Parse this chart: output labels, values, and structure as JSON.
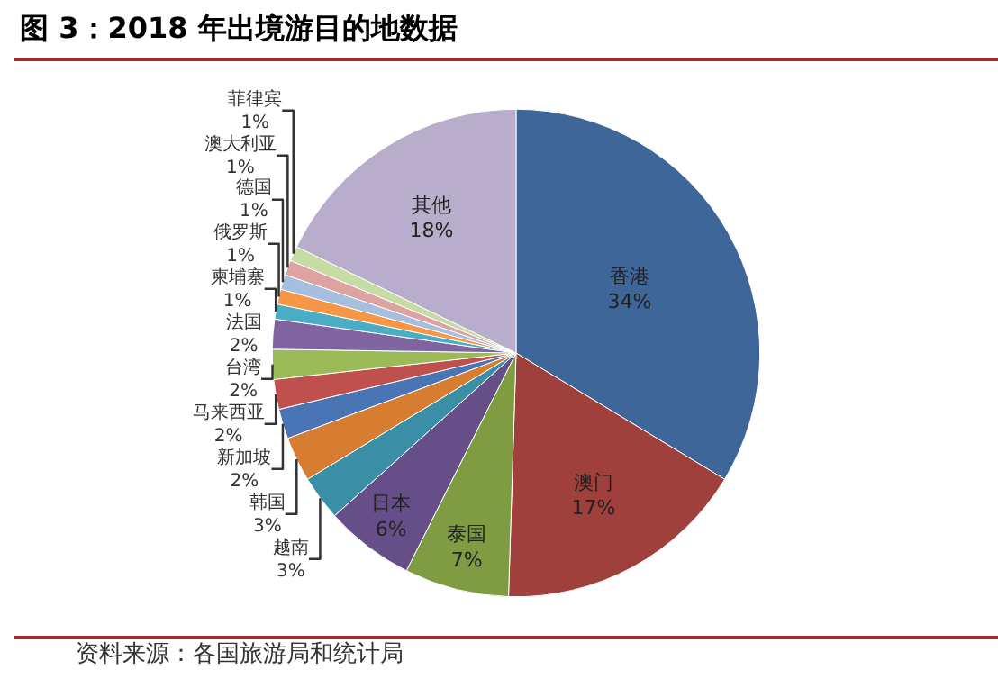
{
  "chart_data": {
    "type": "pie",
    "title": "图 3：2018 年出境游目的地数据",
    "categories": [
      "香港",
      "澳门",
      "泰国",
      "日本",
      "越南",
      "韩国",
      "新加坡",
      "马来西亚",
      "台湾",
      "法国",
      "柬埔寨",
      "俄罗斯",
      "德国",
      "澳大利亚",
      "菲律宾",
      "其他"
    ],
    "values": [
      34,
      17,
      7,
      6,
      3,
      3,
      2,
      2,
      2,
      2,
      1,
      1,
      1,
      1,
      1,
      18
    ],
    "value_labels": [
      "34%",
      "17%",
      "7%",
      "6%",
      "3%",
      "3%",
      "2%",
      "2%",
      "2%",
      "2%",
      "1%",
      "1%",
      "1%",
      "1%",
      "1%",
      "18%"
    ],
    "colors": [
      "#3f6699",
      "#a0403d",
      "#7f9c43",
      "#664f88",
      "#3a8ea6",
      "#d67d32",
      "#4a75b5",
      "#c0504d",
      "#9bbb59",
      "#8064a2",
      "#4bacc6",
      "#f79646",
      "#a7bfdf",
      "#dca3a1",
      "#c7dba4",
      "#b8aecc"
    ],
    "annotations": [
      "资料来源：各国旅游局和统计局"
    ],
    "legend": false
  }
}
